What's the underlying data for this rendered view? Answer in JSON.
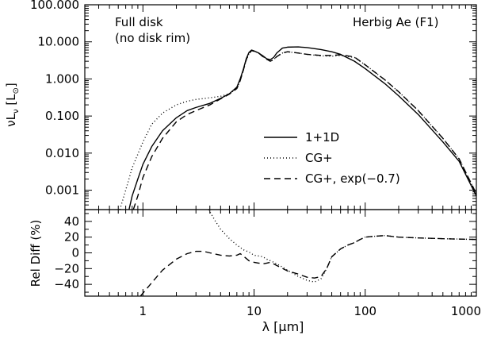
{
  "chart_data": [
    {
      "type": "line",
      "panel": "top",
      "ylabel": "νL_ν [L_⊙]",
      "ylabel_parts": {
        "main": "νL",
        "sub": "ν",
        "unit_open": " [L",
        "unit_sym": "⊙",
        "unit_close": "]"
      },
      "xscale": "log",
      "yscale": "log",
      "xlim": [
        0.3,
        1000
      ],
      "ylim": [
        0.0003,
        100
      ],
      "yticks": [
        0.001,
        0.01,
        0.1,
        1,
        10,
        100
      ],
      "ytick_labels": [
        "0.001",
        "0.010",
        "0.100",
        "1.000",
        "10.000",
        "100.000"
      ],
      "annotations": [
        "Full disk",
        "(no disk rim)",
        "Herbig Ae (F1)"
      ],
      "legend_position": "center-right",
      "series": [
        {
          "name": "1+1D",
          "style": "solid",
          "x": [
            0.75,
            0.8,
            0.9,
            1.0,
            1.2,
            1.5,
            2,
            2.5,
            3,
            4,
            5,
            6,
            7,
            7.5,
            8,
            8.5,
            9,
            9.5,
            10,
            11,
            12,
            13,
            14,
            15,
            16,
            18,
            20,
            25,
            30,
            40,
            50,
            60,
            80,
            100,
            150,
            200,
            300,
            500,
            700,
            1000
          ],
          "y": [
            0.0003,
            0.0007,
            0.002,
            0.005,
            0.015,
            0.04,
            0.09,
            0.14,
            0.17,
            0.22,
            0.3,
            0.4,
            0.6,
            1.0,
            1.8,
            3.5,
            5.2,
            6.0,
            5.7,
            5.0,
            4.2,
            3.5,
            3.3,
            3.8,
            5.0,
            6.8,
            7.2,
            7.3,
            7.0,
            6.2,
            5.4,
            4.6,
            3.0,
            1.9,
            0.75,
            0.35,
            0.11,
            0.02,
            0.006,
            0.0007
          ]
        },
        {
          "name": "CG+",
          "style": "dotted",
          "x": [
            0.62,
            0.7,
            0.8,
            1.0,
            1.2,
            1.5,
            2,
            2.5,
            3,
            4,
            5,
            6,
            7,
            7.5,
            8,
            8.5,
            9,
            9.5,
            10,
            11,
            12,
            13,
            14,
            15,
            16,
            18,
            20,
            25,
            30,
            40,
            50,
            60,
            80,
            100,
            150,
            200,
            300,
            500,
            700,
            1000
          ],
          "y": [
            0.0003,
            0.001,
            0.004,
            0.02,
            0.06,
            0.12,
            0.2,
            0.25,
            0.28,
            0.31,
            0.34,
            0.4,
            0.55,
            0.9,
            1.7,
            3.2,
            4.8,
            5.7,
            5.6,
            5.0,
            4.0,
            3.4,
            3.0,
            3.3,
            4.0,
            5.0,
            5.4,
            5.0,
            4.6,
            4.2,
            4.1,
            4.3,
            3.8,
            2.4,
            0.95,
            0.45,
            0.14,
            0.025,
            0.007,
            0.0008
          ]
        },
        {
          "name": "CG+, exp(−0.7)",
          "style": "dashed",
          "x": [
            0.82,
            0.9,
            1.0,
            1.2,
            1.5,
            2,
            2.5,
            3,
            4,
            5,
            6,
            7,
            7.5,
            8,
            8.5,
            9,
            9.5,
            10,
            11,
            12,
            13,
            14,
            15,
            16,
            18,
            20,
            25,
            30,
            40,
            50,
            60,
            80,
            100,
            150,
            200,
            300,
            500,
            700,
            1000
          ],
          "y": [
            0.0003,
            0.0007,
            0.0022,
            0.008,
            0.025,
            0.07,
            0.11,
            0.14,
            0.2,
            0.29,
            0.39,
            0.55,
            0.9,
            1.7,
            3.3,
            4.9,
            5.8,
            5.6,
            5.0,
            4.0,
            3.4,
            3.0,
            3.3,
            4.0,
            5.0,
            5.4,
            5.0,
            4.6,
            4.3,
            4.3,
            4.5,
            3.9,
            2.4,
            0.95,
            0.45,
            0.14,
            0.025,
            0.007,
            0.0008
          ]
        }
      ]
    },
    {
      "type": "line",
      "panel": "bottom",
      "xlabel": "λ [μm]",
      "xlabel_parts": {
        "main": "λ [",
        "unit": "μm",
        "close": "]"
      },
      "ylabel": "Rel Diff (%)",
      "xscale": "log",
      "yscale": "linear",
      "xlim": [
        0.3,
        1000
      ],
      "ylim": [
        -55,
        55
      ],
      "yticks": [
        -40,
        -20,
        0,
        20,
        40
      ],
      "ytick_labels": [
        "−40",
        "−20",
        "0",
        "20",
        "40"
      ],
      "xticks": [
        1,
        10,
        100,
        1000
      ],
      "xtick_labels": [
        "1",
        "10",
        "100",
        "1000"
      ],
      "series": [
        {
          "name": "CG+",
          "style": "dotted",
          "x": [
            3.9,
            4.5,
            5,
            6,
            7,
            8,
            9,
            10,
            11,
            12,
            13,
            14,
            15,
            17,
            20,
            25,
            30,
            35,
            40,
            45,
            50,
            60,
            70,
            80,
            90,
            100,
            120,
            150,
            200,
            300,
            500,
            1000
          ],
          "y": [
            55,
            40,
            30,
            18,
            10,
            4,
            1,
            -3,
            -4,
            -5,
            -8,
            -10,
            -12,
            -16,
            -22,
            -30,
            -35,
            -37,
            -33,
            -20,
            -5,
            5,
            10,
            13,
            17,
            20,
            21,
            22,
            20,
            19,
            18,
            17
          ]
        },
        {
          "name": "CG+, exp(−0.7)",
          "style": "dashed",
          "x": [
            0.95,
            1.2,
            1.5,
            2,
            2.5,
            3,
            3.5,
            4,
            5,
            6,
            7,
            7.5,
            8,
            9,
            10,
            11,
            12,
            13,
            14,
            15,
            17,
            20,
            25,
            30,
            35,
            40,
            45,
            50,
            60,
            70,
            80,
            90,
            100,
            120,
            150,
            200,
            300,
            500,
            1000
          ],
          "y": [
            -55,
            -38,
            -22,
            -8,
            -1,
            2,
            2,
            0,
            -3,
            -4,
            -3,
            -1,
            -4,
            -10,
            -12,
            -13,
            -14,
            -13,
            -12,
            -14,
            -18,
            -23,
            -27,
            -31,
            -32,
            -30,
            -20,
            -5,
            5,
            10,
            13,
            17,
            20,
            21,
            22,
            20,
            19,
            18,
            17
          ]
        }
      ]
    }
  ]
}
